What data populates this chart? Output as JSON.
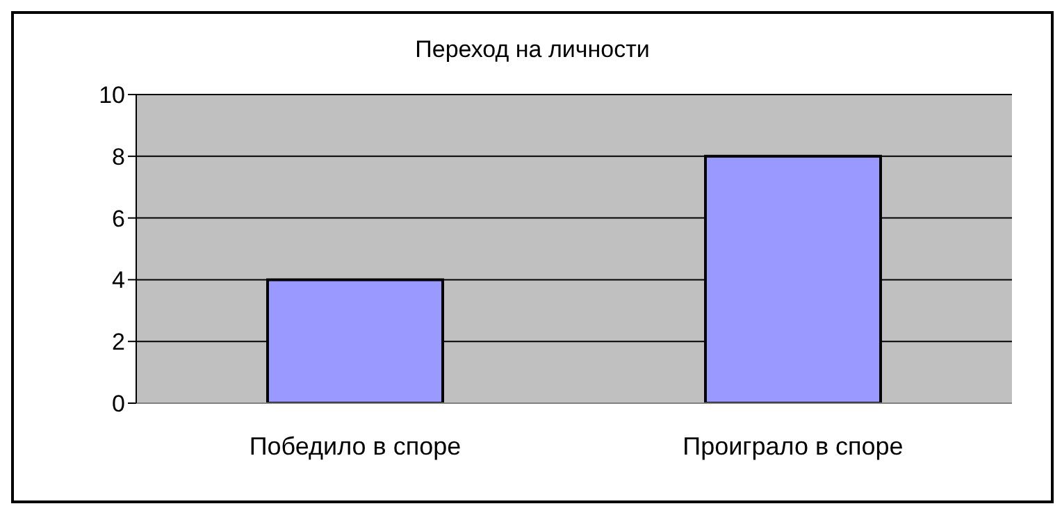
{
  "chart_data": {
    "type": "bar",
    "title": "Переход на личности",
    "categories": [
      "Победило в споре",
      "Проиграло в споре"
    ],
    "values": [
      4,
      8
    ],
    "color": "#9999ff",
    "ylim": [
      0,
      10
    ],
    "yticks": [
      0,
      2,
      4,
      6,
      8,
      10
    ],
    "grid": "y",
    "legend": false
  }
}
